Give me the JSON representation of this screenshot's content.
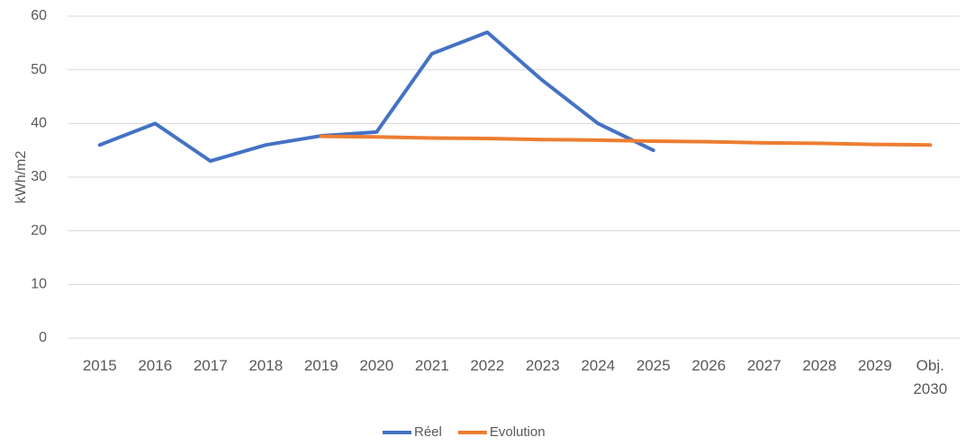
{
  "chart_data": {
    "type": "line",
    "y_label": "kWh/m2",
    "categories": [
      "2015",
      "2016",
      "2017",
      "2018",
      "2019",
      "2020",
      "2021",
      "2022",
      "2023",
      "2024",
      "2025",
      "2026",
      "2027",
      "2028",
      "2029",
      "Obj. 2030"
    ],
    "series": [
      {
        "name": "Réel",
        "color": "#4472c4",
        "values": [
          36,
          40,
          33,
          36,
          37.7,
          38.4,
          53,
          57,
          48,
          40,
          35,
          null,
          null,
          null,
          null,
          null
        ]
      },
      {
        "name": "Evolution",
        "color": "#ed7d31",
        "values": [
          null,
          null,
          null,
          null,
          37.6,
          37.5,
          37.3,
          37.2,
          37.0,
          36.9,
          36.7,
          36.6,
          36.4,
          36.3,
          36.1,
          36.0
        ]
      }
    ],
    "ylim": [
      0,
      60
    ],
    "yticks": [
      0,
      10,
      20,
      30,
      40,
      50,
      60
    ],
    "grid": true,
    "legend": "bottom"
  }
}
